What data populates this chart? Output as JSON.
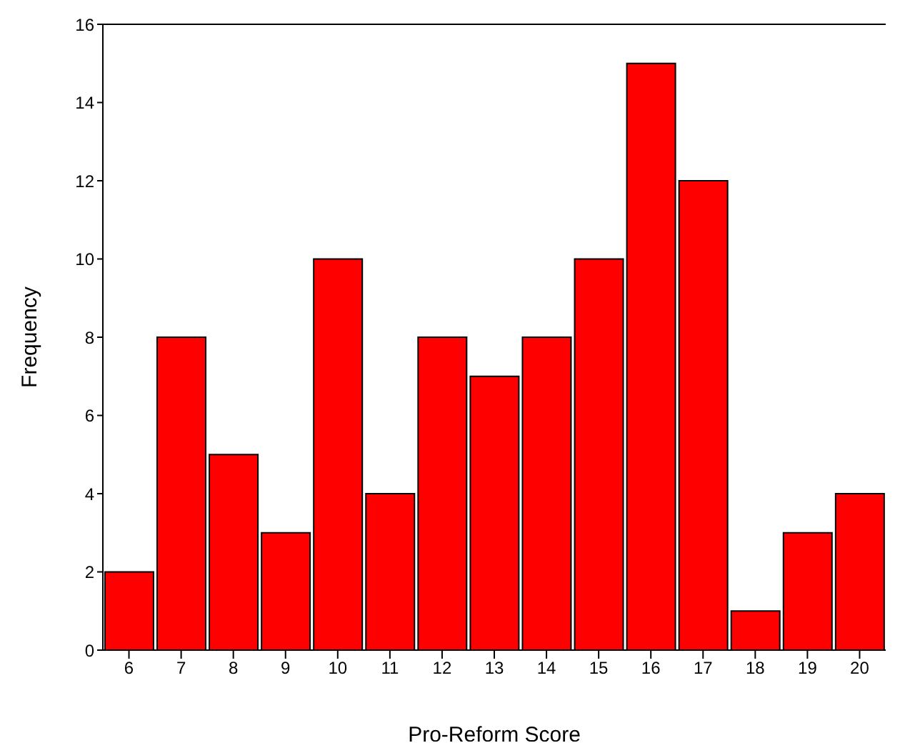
{
  "chart_data": {
    "type": "bar",
    "xlabel": "Pro-Reform Score",
    "ylabel": "Frequency",
    "categories": [
      "6",
      "7",
      "8",
      "9",
      "10",
      "11",
      "12",
      "13",
      "14",
      "15",
      "16",
      "17",
      "18",
      "19",
      "20"
    ],
    "values": [
      2,
      8,
      5,
      3,
      10,
      4,
      8,
      7,
      8,
      10,
      15,
      12,
      1,
      3,
      4
    ],
    "color": "#ff0000",
    "ylim": [
      0,
      16
    ],
    "yticks": [
      0,
      2,
      4,
      6,
      8,
      10,
      12,
      14,
      16
    ],
    "grid": false,
    "legend": false
  }
}
